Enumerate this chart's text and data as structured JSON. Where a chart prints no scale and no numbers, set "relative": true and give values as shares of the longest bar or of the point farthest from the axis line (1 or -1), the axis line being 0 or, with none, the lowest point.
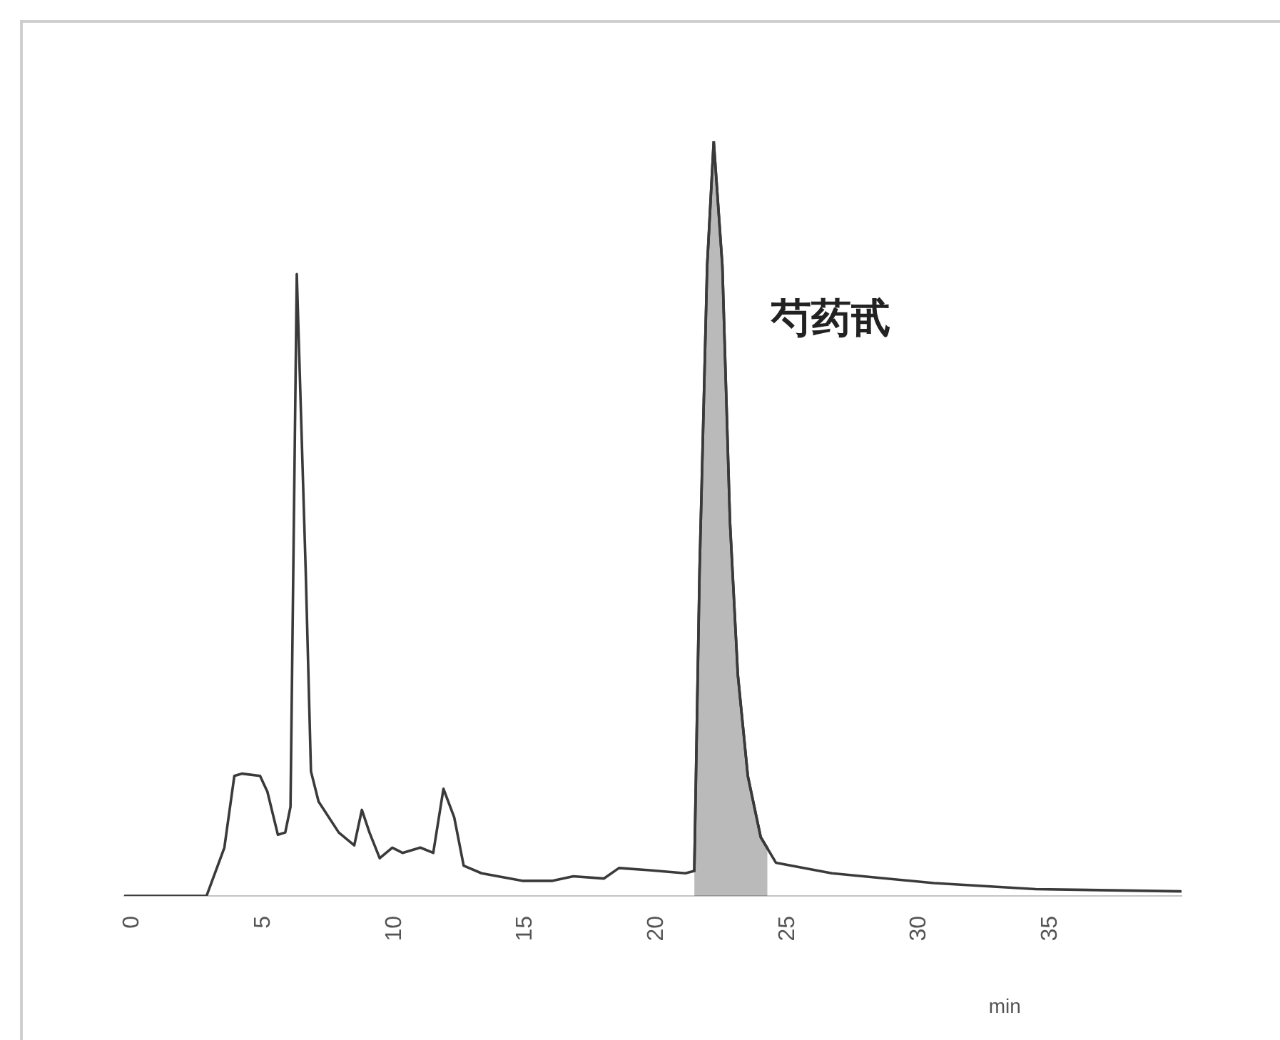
{
  "chart_data": {
    "type": "line",
    "xlabel": "min",
    "x": [
      -0.27,
      2.84,
      3.52,
      3.9,
      4.2,
      4.88,
      5.16,
      5.56,
      5.84,
      6.04,
      6.28,
      6.62,
      6.82,
      7.11,
      7.88,
      8.47,
      8.76,
      9.05,
      9.44,
      9.92,
      10.31,
      10.99,
      11.48,
      11.87,
      12.28,
      12.64,
      13.32,
      14.87,
      16.03,
      16.82,
      17.98,
      18.56,
      19.73,
      21.09,
      21.43,
      21.63,
      21.92,
      22.17,
      22.5,
      22.79,
      23.09,
      23.47,
      23.96,
      24.54,
      26.67,
      30.56,
      34.44,
      39.97
    ],
    "series": [
      {
        "color": "#3a3a3a",
        "values": [
          0,
          0,
          0.064,
          0.159,
          0.162,
          0.159,
          0.138,
          0.081,
          0.084,
          0.118,
          0.824,
          0.43,
          0.165,
          0.125,
          0.084,
          0.067,
          0.114,
          0.084,
          0.05,
          0.064,
          0.057,
          0.064,
          0.057,
          0.142,
          0.104,
          0.04,
          0.03,
          0.02,
          0.02,
          0.026,
          0.023,
          0.037,
          0.034,
          0.03,
          0.033,
          0.43,
          0.835,
          1,
          0.835,
          0.496,
          0.293,
          0.159,
          0.078,
          0.044,
          0.03,
          0.017,
          0.009,
          0.006
        ]
      },
      {
        "type": "area",
        "color": "#3a3a3a",
        "x": [
          21.43,
          21.63,
          21.92,
          22.17,
          22.5,
          22.79,
          23.09,
          23.47,
          23.96,
          24.22
        ],
        "values": [
          0.033,
          0.43,
          0.835,
          1,
          0.835,
          0.496,
          0.293,
          0.159,
          0.078,
          0.063
        ]
      }
    ],
    "relative": true,
    "xlim": [
      -0.3,
      40
    ],
    "xticks": [
      0,
      5,
      10,
      15,
      20,
      25,
      30,
      35
    ],
    "annotations": [
      "芍药甙"
    ],
    "marker": "none"
  }
}
